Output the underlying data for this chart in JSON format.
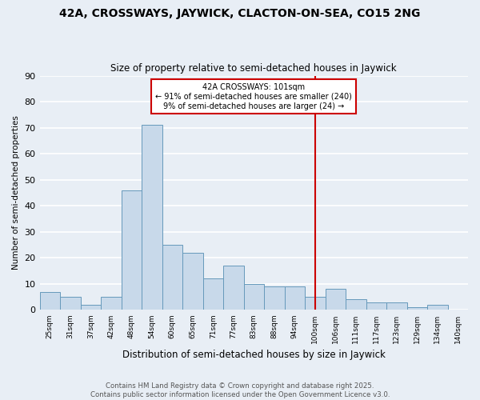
{
  "title": "42A, CROSSWAYS, JAYWICK, CLACTON-ON-SEA, CO15 2NG",
  "subtitle": "Size of property relative to semi-detached houses in Jaywick",
  "xlabel": "Distribution of semi-detached houses by size in Jaywick",
  "ylabel": "Number of semi-detached properties",
  "footer_line1": "Contains HM Land Registry data © Crown copyright and database right 2025.",
  "footer_line2": "Contains public sector information licensed under the Open Government Licence v3.0.",
  "categories": [
    "25sqm",
    "31sqm",
    "37sqm",
    "42sqm",
    "48sqm",
    "54sqm",
    "60sqm",
    "65sqm",
    "71sqm",
    "77sqm",
    "83sqm",
    "88sqm",
    "94sqm",
    "100sqm",
    "106sqm",
    "111sqm",
    "117sqm",
    "123sqm",
    "129sqm",
    "134sqm",
    "140sqm"
  ],
  "values": [
    7,
    5,
    2,
    5,
    46,
    71,
    25,
    22,
    12,
    17,
    10,
    9,
    9,
    5,
    8,
    4,
    3,
    3,
    1,
    2,
    0
  ],
  "bar_color": "#c8d9ea",
  "bar_edge_color": "#6699bb",
  "background_color": "#e8eef5",
  "grid_color": "#ffffff",
  "vline_x": 13,
  "vline_color": "#cc0000",
  "annotation_title": "42A CROSSWAYS: 101sqm",
  "annotation_line2": "← 91% of semi-detached houses are smaller (240)",
  "annotation_line3": "9% of semi-detached houses are larger (24) →",
  "annotation_box_color": "#cc0000",
  "ylim": [
    0,
    90
  ],
  "yticks": [
    0,
    10,
    20,
    30,
    40,
    50,
    60,
    70,
    80,
    90
  ]
}
